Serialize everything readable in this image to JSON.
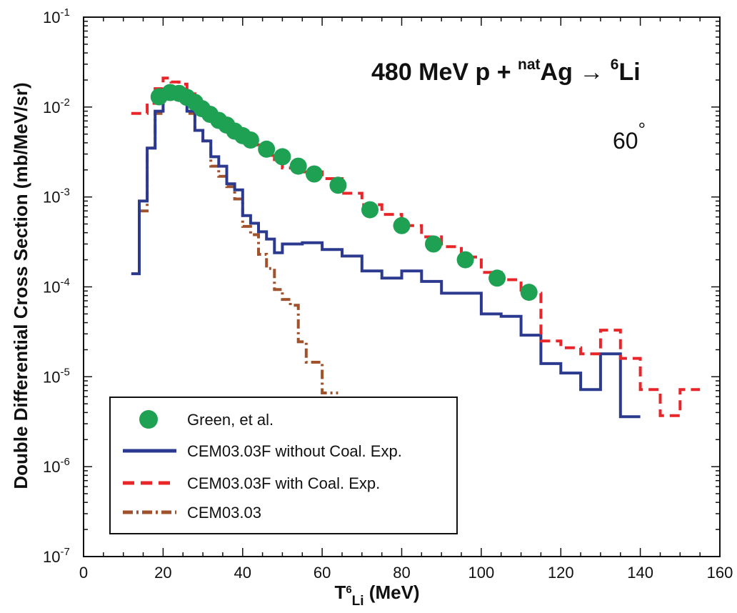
{
  "chart_data": {
    "type": "line",
    "title_parts": {
      "pre": "480 MeV p + ",
      "sup1": "nat",
      "mid": "Ag ",
      "arrow": "→ ",
      "sup2": "6",
      "post": "Li"
    },
    "angle_label": "60",
    "angle_degree": "°",
    "xlabel_parts": {
      "t": "T",
      "sup": "6",
      "sub": "Li",
      "unit": " (MeV)"
    },
    "ylabel": "Double Differential Cross Section (mb/MeV/sr)",
    "xlim": [
      0,
      160
    ],
    "ylim": [
      1e-07,
      0.1
    ],
    "yscale": "log",
    "x_ticks": [
      "0",
      "20",
      "40",
      "60",
      "80",
      "100",
      "120",
      "140",
      "160"
    ],
    "y_ticks": [
      {
        "base": "10",
        "exp": "-7"
      },
      {
        "base": "10",
        "exp": "-6"
      },
      {
        "base": "10",
        "exp": "-5"
      },
      {
        "base": "10",
        "exp": "-4"
      },
      {
        "base": "10",
        "exp": "-3"
      },
      {
        "base": "10",
        "exp": "-2"
      },
      {
        "base": "10",
        "exp": "-1"
      }
    ],
    "grid": false,
    "legend_position": "bottom-left",
    "series": [
      {
        "name": "Green, et al.",
        "type": "scatter",
        "color": "#1fa154",
        "x": [
          19,
          21.8,
          24,
          26,
          28,
          29.8,
          31.8,
          34,
          36,
          38,
          40,
          42,
          46,
          50,
          54,
          58,
          64,
          72,
          80,
          88,
          96,
          104,
          112
        ],
        "y": [
          0.013,
          0.0145,
          0.0142,
          0.0128,
          0.0113,
          0.0096,
          0.0083,
          0.0071,
          0.0063,
          0.0054,
          0.0048,
          0.0043,
          0.0034,
          0.0028,
          0.0022,
          0.0018,
          0.00135,
          0.00072,
          0.00048,
          0.0003,
          0.0002,
          0.000125,
          8.7e-05
        ]
      },
      {
        "name": "CEM03.03F without Coal. Exp.",
        "type": "step",
        "color": "#2b3a8f",
        "edges": [
          12,
          14,
          16,
          18,
          20,
          22,
          24,
          26,
          28,
          30,
          32,
          34,
          36,
          38,
          40,
          42,
          44,
          46,
          48,
          50,
          55,
          60,
          65,
          70,
          75,
          80,
          85,
          90,
          95,
          100,
          105,
          110,
          115,
          120,
          125,
          130,
          135,
          140
        ],
        "values": [
          0.00014,
          0.0009,
          0.0035,
          0.009,
          0.0135,
          0.0145,
          0.0135,
          0.009,
          0.0055,
          0.0042,
          0.0028,
          0.0022,
          0.0014,
          0.0012,
          0.00062,
          0.00051,
          0.00041,
          0.00034,
          0.00024,
          0.0003,
          0.00031,
          0.00026,
          0.00022,
          0.00015,
          0.000125,
          0.00015,
          0.000115,
          8.5e-05,
          8.5e-05,
          5e-05,
          4.7e-05,
          2.9e-05,
          1.4e-05,
          1.1e-05,
          7.2e-06,
          1.8e-05,
          3.6e-06
        ]
      },
      {
        "name": "CEM03.03F with Coal. Exp.",
        "type": "step",
        "color": "#e8262a",
        "edges": [
          12,
          16,
          18,
          20,
          22,
          24,
          26,
          28,
          30,
          32,
          34,
          36,
          38,
          40,
          42,
          44,
          46,
          48,
          50,
          55,
          60,
          65,
          70,
          75,
          80,
          85,
          90,
          95,
          100,
          105,
          110,
          115,
          120,
          125,
          130,
          135,
          140,
          145,
          150,
          155
        ],
        "values": [
          0.0085,
          0.011,
          0.016,
          0.021,
          0.019,
          0.018,
          0.014,
          0.011,
          0.0095,
          0.0078,
          0.0067,
          0.0058,
          0.005,
          0.0042,
          0.0038,
          0.0033,
          0.0029,
          0.0025,
          0.0021,
          0.0019,
          0.0016,
          0.0011,
          0.00082,
          0.00064,
          0.00048,
          0.00036,
          0.00028,
          0.000215,
          0.000145,
          0.00012,
          8.5e-05,
          2.5e-05,
          2.1e-05,
          1.8e-05,
          3.3e-05,
          1.6e-05,
          7.2e-06,
          3.7e-06,
          7.2e-06
        ]
      },
      {
        "name": "CEM03.03",
        "type": "step",
        "color": "#a0522d",
        "edges": [
          14,
          16,
          18,
          20,
          22,
          24,
          26,
          28,
          30,
          32,
          34,
          36,
          38,
          40,
          42,
          44,
          46,
          48,
          50,
          52,
          54,
          56,
          58,
          60,
          62,
          64
        ],
        "values": [
          0.0007,
          0.0035,
          0.0085,
          0.0125,
          0.014,
          0.0125,
          0.0085,
          0.0055,
          0.0042,
          0.0022,
          0.0017,
          0.0013,
          0.00095,
          0.00047,
          0.00038,
          0.00023,
          0.00016,
          9.35e-05,
          7.25e-05,
          6.25e-05,
          2.45e-05,
          1.45e-05,
          1.45e-05,
          6.6e-06,
          6.6e-06
        ]
      }
    ]
  }
}
